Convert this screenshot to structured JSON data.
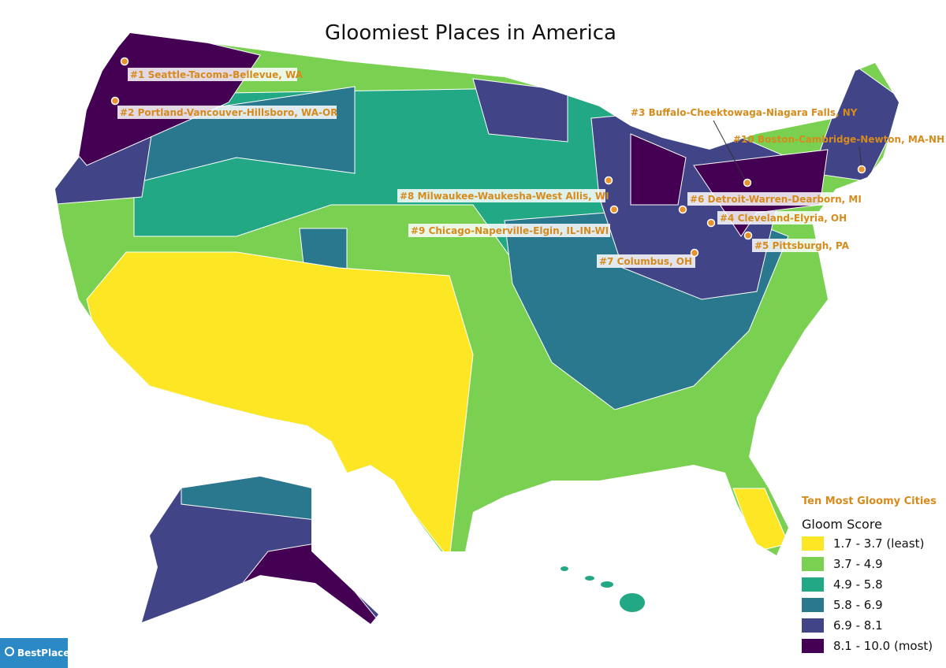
{
  "title": "Gloomiest Places in America",
  "cities": [
    "#1  Seattle-Tacoma-Bellevue, WA",
    "#2  Portland-Vancouver-Hillsboro, WA-OR",
    "#3  Buffalo-Cheektowaga-Niagara Falls, NY",
    "#4  Cleveland-Elyria, OH",
    "#5  Pittsburgh, PA",
    "#6  Detroit-Warren-Dearborn, MI",
    "#7  Columbus, OH",
    "#8  Milwaukee-Waukesha-West Allis, WI",
    "#9  Chicago-Naperville-Elgin, IL-IN-WI",
    "#10  Boston-Cambridge-Newton, MA-NH"
  ],
  "legend": {
    "heading": "Ten Most Gloomy Cities",
    "title": "Gloom Score",
    "items": [
      {
        "label": "1.7 - 3.7 (least)",
        "color": "#fde725"
      },
      {
        "label": "3.7 - 4.9",
        "color": "#7ad151"
      },
      {
        "label": "4.9 - 5.8",
        "color": "#22a884"
      },
      {
        "label": "5.8 - 6.9",
        "color": "#2a788e"
      },
      {
        "label": "6.9 - 8.1",
        "color": "#414487"
      },
      {
        "label": "8.1 - 10.0 (most)",
        "color": "#440154"
      }
    ]
  },
  "brand": "BestPlaces"
}
